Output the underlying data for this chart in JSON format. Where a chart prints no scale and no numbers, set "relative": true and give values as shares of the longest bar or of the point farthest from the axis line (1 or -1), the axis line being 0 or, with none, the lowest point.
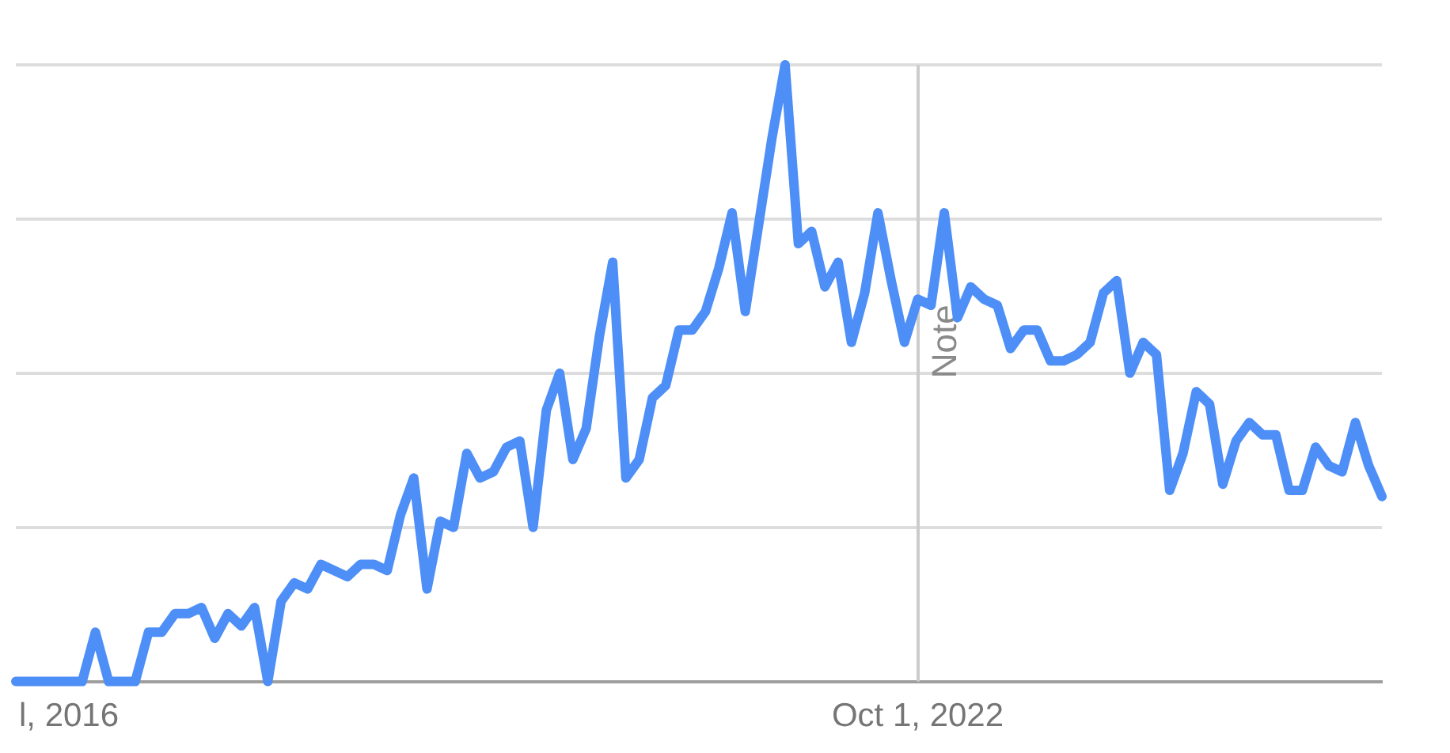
{
  "chart_data": {
    "type": "line",
    "relative": true,
    "grid": "y",
    "legend": false,
    "marker": "none",
    "line_style": "solid",
    "categories": [
      null,
      null,
      null,
      null,
      "l, 2016",
      null,
      null,
      null,
      null,
      null,
      null,
      null,
      null,
      null,
      null,
      null,
      null,
      null,
      null,
      null,
      null,
      null,
      null,
      null,
      null,
      null,
      null,
      null,
      null,
      null,
      null,
      null,
      null,
      null,
      null,
      null,
      null,
      null,
      null,
      null,
      null,
      null,
      null,
      null,
      null,
      null,
      null,
      null,
      null,
      null,
      null,
      null,
      null,
      null,
      null,
      null,
      null,
      null,
      null,
      null,
      null,
      null,
      null,
      null,
      null,
      null,
      null,
      null,
      "Oct 1, 2022",
      null,
      null,
      null,
      null,
      null,
      null,
      null,
      null,
      null,
      null,
      null,
      null,
      null,
      null,
      null,
      null,
      null,
      null,
      null,
      null,
      null,
      null,
      null,
      null,
      null,
      null,
      null,
      null,
      null,
      null,
      null,
      null,
      null,
      null,
      null
    ],
    "series": [
      {
        "color": "#4e8ef7",
        "values": [
          0,
          0,
          0,
          0,
          0,
          0,
          0.08,
          0,
          0,
          0,
          0.08,
          0.08,
          0.11,
          0.11,
          0.12,
          0.07,
          0.11,
          0.09,
          0.12,
          0,
          0.13,
          0.16,
          0.15,
          0.19,
          0.18,
          0.17,
          0.19,
          0.19,
          0.18,
          0.27,
          0.33,
          0.15,
          0.26,
          0.25,
          0.37,
          0.33,
          0.34,
          0.38,
          0.39,
          0.25,
          0.44,
          0.5,
          0.36,
          0.41,
          0.56,
          0.68,
          0.33,
          0.36,
          0.46,
          0.48,
          0.57,
          0.57,
          0.6,
          0.67,
          0.76,
          0.6,
          0.74,
          0.88,
          1,
          0.71,
          0.73,
          0.64,
          0.68,
          0.55,
          0.63,
          0.76,
          0.65,
          0.55,
          0.62,
          0.61,
          0.76,
          0.59,
          0.64,
          0.62,
          0.61,
          0.54,
          0.57,
          0.57,
          0.52,
          0.52,
          0.53,
          0.55,
          0.63,
          0.65,
          0.5,
          0.55,
          0.53,
          0.31,
          0.37,
          0.47,
          0.45,
          0.32,
          0.39,
          0.42,
          0.4,
          0.4,
          0.31,
          0.31,
          0.38,
          0.35,
          0.34,
          0.42,
          0.35,
          0.3
        ]
      }
    ],
    "ref_lines": [
      {
        "axis": "x",
        "value": "Oct 1, 2022",
        "label": "Note",
        "color": "#cccccc"
      }
    ]
  }
}
